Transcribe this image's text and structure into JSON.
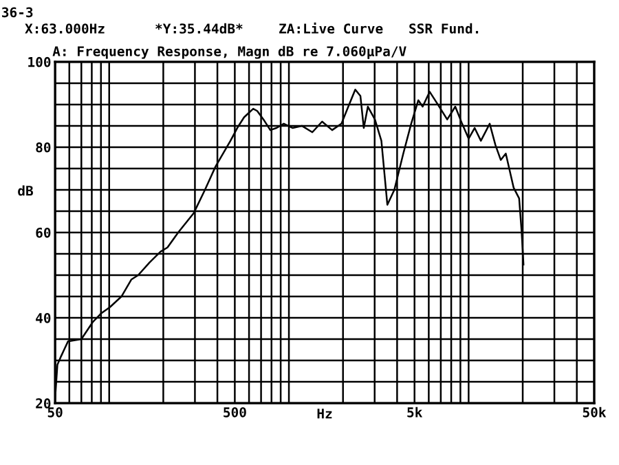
{
  "chart_data": {
    "type": "line",
    "title": "A: Frequency Response, Magn dB re 7.060µPa/V",
    "annotations": [
      "36-3",
      "X:63.000Hz",
      "*Y:35.44dB*",
      "ZA:Live Curve",
      "SSR Fund."
    ],
    "xlabel": "Hz",
    "ylabel": "dB",
    "log": "x",
    "grid": true,
    "legend": false,
    "marker": "none",
    "line_style": "solid",
    "xlim": [
      50,
      50000
    ],
    "ylim": [
      20,
      100
    ],
    "xticks": [
      50,
      {
        "value": 60,
        "label": null
      },
      {
        "value": 70,
        "label": null
      },
      {
        "value": 80,
        "label": null
      },
      {
        "value": 90,
        "label": null
      },
      {
        "value": 100,
        "label": null
      },
      {
        "value": 200,
        "label": null
      },
      {
        "value": 300,
        "label": null
      },
      {
        "value": 400,
        "label": null
      },
      500,
      {
        "value": 600,
        "label": null
      },
      {
        "value": 700,
        "label": null
      },
      {
        "value": 800,
        "label": null
      },
      {
        "value": 900,
        "label": null
      },
      {
        "value": 1000,
        "label": null
      },
      {
        "value": 2000,
        "label": null
      },
      {
        "value": 3000,
        "label": null
      },
      {
        "value": 4000,
        "label": null
      },
      {
        "value": 5000,
        "label": "5k"
      },
      {
        "value": 6000,
        "label": null
      },
      {
        "value": 7000,
        "label": null
      },
      {
        "value": 8000,
        "label": null
      },
      {
        "value": 9000,
        "label": null
      },
      {
        "value": 10000,
        "label": null
      },
      {
        "value": 20000,
        "label": null
      },
      {
        "value": 30000,
        "label": null
      },
      {
        "value": 40000,
        "label": null
      },
      {
        "value": 50000,
        "label": "50k"
      }
    ],
    "yticks": [
      20,
      {
        "value": 25,
        "label": null
      },
      {
        "value": 30,
        "label": null
      },
      {
        "value": 35,
        "label": null
      },
      40,
      {
        "value": 45,
        "label": null
      },
      {
        "value": 50,
        "label": null
      },
      {
        "value": 55,
        "label": null
      },
      60,
      {
        "value": 65,
        "label": null
      },
      {
        "value": 70,
        "label": null
      },
      {
        "value": 75,
        "label": null
      },
      80,
      {
        "value": 85,
        "label": null
      },
      {
        "value": 90,
        "label": null
      },
      {
        "value": 95,
        "label": null
      },
      100
    ],
    "series": [
      {
        "color": "#000000",
        "x": [
          50,
          51.5,
          54,
          59,
          70,
          81,
          90,
          101,
          117,
          133,
          145,
          168,
          193,
          211,
          242,
          295,
          341,
          391,
          473,
          516,
          563,
          633,
          666,
          722,
          788,
          853,
          937,
          1050,
          1180,
          1350,
          1530,
          1740,
          1960,
          2140,
          2340,
          2500,
          2610,
          2750,
          3010,
          3270,
          3530,
          3860,
          4330,
          4790,
          5250,
          5550,
          6070,
          6740,
          7600,
          8430,
          9200,
          10000,
          10800,
          11700,
          13100,
          14100,
          15100,
          16100,
          17800,
          19100,
          19700,
          20200
        ],
        "values": [
          21,
          29,
          31,
          34.5,
          35,
          39,
          41,
          42.5,
          45,
          49,
          50,
          53,
          55.5,
          56.5,
          60,
          64.5,
          70,
          75.5,
          81.5,
          84.5,
          87,
          89,
          88.5,
          86.5,
          84,
          84.5,
          85.5,
          84.5,
          85,
          83.5,
          86,
          84,
          85.5,
          89.5,
          93.5,
          92,
          84.5,
          89.5,
          86.5,
          81.5,
          66.5,
          70,
          78.5,
          85.5,
          91,
          89.5,
          93,
          90,
          86.5,
          89.5,
          85.5,
          82,
          84.5,
          81.5,
          85.5,
          80.5,
          77,
          78.5,
          70.5,
          68,
          60.5,
          52.5
        ]
      }
    ]
  }
}
